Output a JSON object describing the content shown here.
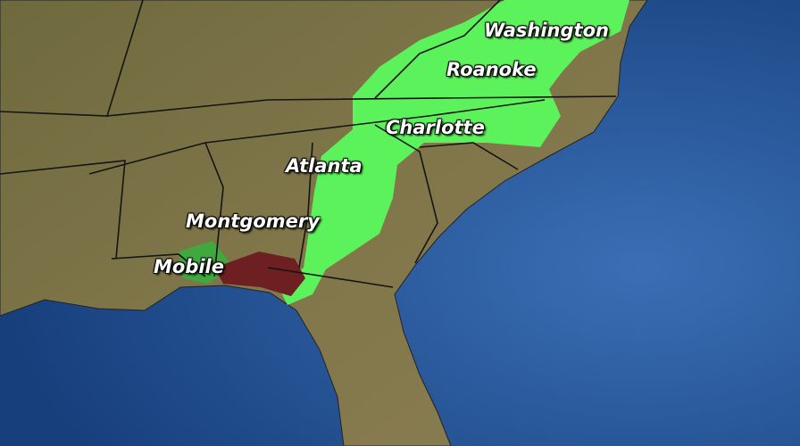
{
  "map": {
    "colors": {
      "ocean": "#1f4d90",
      "ocean_light": "#3a6fb5",
      "land": "#7d7447",
      "rain_light": "#5cf25c",
      "rain_dark": "#3fa83f",
      "rain_heavy": "#6e1f22",
      "borders": "#141414"
    },
    "cities": [
      {
        "name": "Washington"
      },
      {
        "name": "Roanoke"
      },
      {
        "name": "Charlotte"
      },
      {
        "name": "Atlanta"
      },
      {
        "name": "Montgomery"
      },
      {
        "name": "Mobile"
      }
    ]
  }
}
